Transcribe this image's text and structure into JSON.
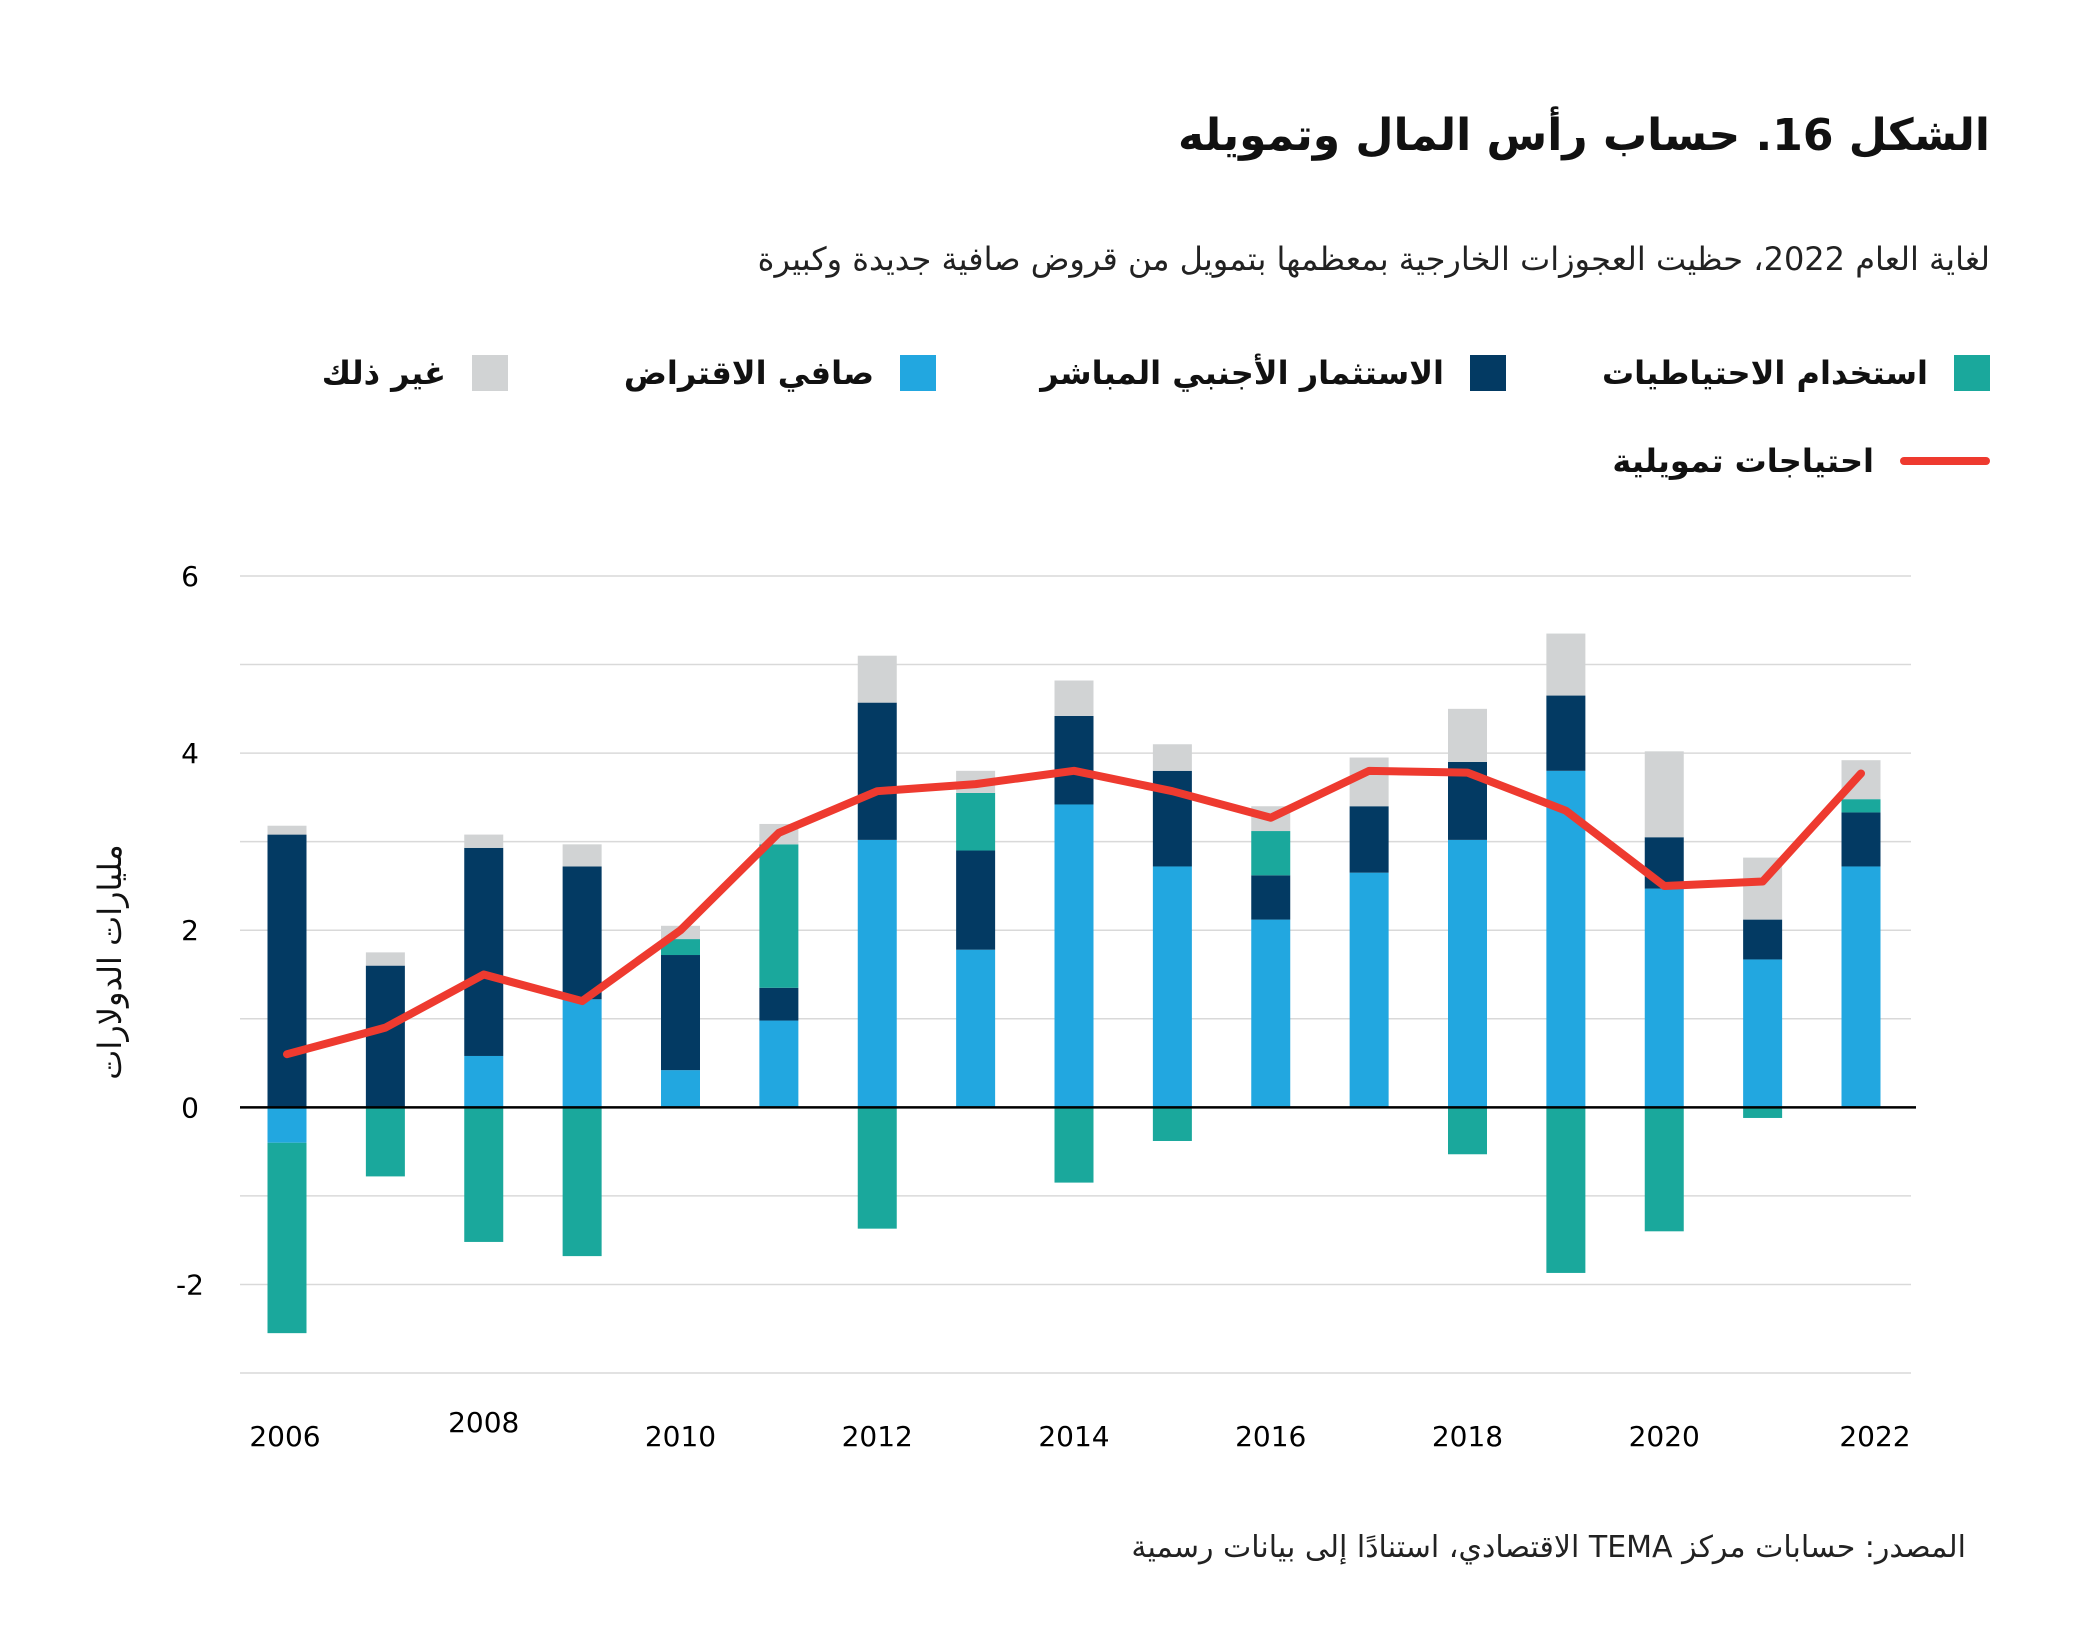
{
  "title": "الشكل 16. حساب رأس المال وتمويله",
  "subtitle": "لغاية العام 2022، حظيت العجوزات الخارجية بمعظمها بتمويل من قروض صافية جديدة وكبيرة",
  "source": "المصدر: حسابات مركز TEMA الاقتصادي، استنادًا إلى بيانات رسمية",
  "chart_data": {
    "type": "bar",
    "stacked": true,
    "ylabel": "مليارات الدولارات",
    "ylim": [
      -3,
      6
    ],
    "yticks": [
      6,
      4,
      2,
      0,
      -2
    ],
    "grid": true,
    "legend_placement": "top",
    "x": [
      2006,
      2007,
      2008,
      2009,
      2010,
      2011,
      2012,
      2013,
      2014,
      2015,
      2016,
      2017,
      2018,
      2019,
      2020,
      2021,
      2022
    ],
    "xticks": [
      2006,
      2008,
      2010,
      2012,
      2014,
      2016,
      2018,
      2020,
      2022
    ],
    "series": [
      {
        "name": "صافي الاقتراض",
        "color": "#22a7e0",
        "values": [
          -0.4,
          0,
          0.58,
          1.22,
          0.42,
          0.98,
          3.02,
          1.78,
          3.42,
          2.72,
          2.12,
          2.65,
          3.02,
          3.8,
          2.47,
          1.67,
          2.72
        ]
      },
      {
        "name": "الاستثمار الأجنبي المباشر",
        "color": "#033a63",
        "values": [
          3.08,
          1.6,
          2.35,
          1.5,
          1.3,
          0.37,
          1.55,
          1.12,
          1.0,
          1.08,
          0.5,
          0.75,
          0.88,
          0.85,
          0.58,
          0.45,
          0.61
        ]
      },
      {
        "name": "استخدام الاحتياطيات",
        "color": "#1aa89c",
        "values": [
          -2.15,
          -0.78,
          -1.52,
          -1.68,
          0.18,
          1.62,
          -1.37,
          0.65,
          -0.85,
          -0.38,
          0.5,
          0,
          -0.53,
          -1.87,
          -1.4,
          -0.12,
          0.15
        ]
      },
      {
        "name": "غير ذلك",
        "color": "#d1d3d4",
        "values": [
          0.1,
          0.15,
          0.15,
          0.25,
          0.15,
          0.23,
          0.53,
          0.25,
          0.4,
          0.3,
          0.28,
          0.55,
          0.6,
          0.7,
          0.97,
          0.7,
          0.44
        ]
      }
    ],
    "line": {
      "name": "احتياجات تمويلية",
      "color": "#ee3a2f",
      "values": [
        0.6,
        0.9,
        1.5,
        1.2,
        2.0,
        3.1,
        3.57,
        3.65,
        3.8,
        3.57,
        3.27,
        3.8,
        3.78,
        3.35,
        2.5,
        2.55,
        3.77
      ]
    }
  }
}
